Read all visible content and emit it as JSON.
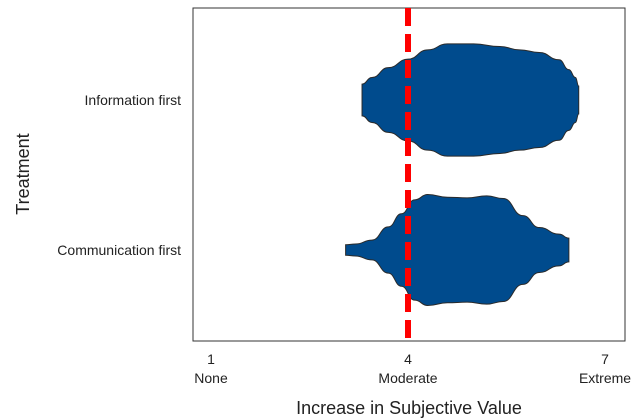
{
  "chart_data": {
    "type": "violin",
    "orientation": "horizontal",
    "title": "",
    "xlabel": "Increase in Subjective Value",
    "ylabel": "Treatment",
    "xlim": [
      1,
      7
    ],
    "x_ticks": [
      {
        "value": 1,
        "number": "1",
        "word": "None"
      },
      {
        "value": 4,
        "number": "4",
        "word": "Moderate"
      },
      {
        "value": 7,
        "number": "7",
        "word": "Extreme"
      }
    ],
    "categories": [
      "Information first",
      "Communication first"
    ],
    "series": [
      {
        "category": "Information first",
        "range": [
          3.3,
          6.6
        ],
        "density_profile": [
          [
            3.3,
            0.24
          ],
          [
            3.45,
            0.34
          ],
          [
            3.7,
            0.49
          ],
          [
            4.0,
            0.62
          ],
          [
            4.3,
            0.76
          ],
          [
            4.6,
            0.85
          ],
          [
            5.0,
            0.85
          ],
          [
            5.4,
            0.81
          ],
          [
            5.7,
            0.76
          ],
          [
            6.0,
            0.72
          ],
          [
            6.3,
            0.61
          ],
          [
            6.45,
            0.46
          ],
          [
            6.55,
            0.34
          ],
          [
            6.6,
            0.21
          ]
        ]
      },
      {
        "category": "Communication first",
        "range": [
          3.05,
          6.45
        ],
        "density_profile": [
          [
            3.05,
            0.08
          ],
          [
            3.2,
            0.09
          ],
          [
            3.45,
            0.15
          ],
          [
            3.7,
            0.35
          ],
          [
            3.9,
            0.55
          ],
          [
            4.1,
            0.76
          ],
          [
            4.3,
            0.84
          ],
          [
            4.6,
            0.8
          ],
          [
            4.9,
            0.79
          ],
          [
            5.2,
            0.82
          ],
          [
            5.45,
            0.78
          ],
          [
            5.75,
            0.52
          ],
          [
            6.0,
            0.34
          ],
          [
            6.3,
            0.24
          ],
          [
            6.45,
            0.18
          ]
        ]
      }
    ],
    "reference_line": {
      "value": 4,
      "style": "dashed",
      "color": "#ff0000"
    },
    "violin_fill": "#004b8d",
    "violin_stroke": "#2a2a2a"
  }
}
